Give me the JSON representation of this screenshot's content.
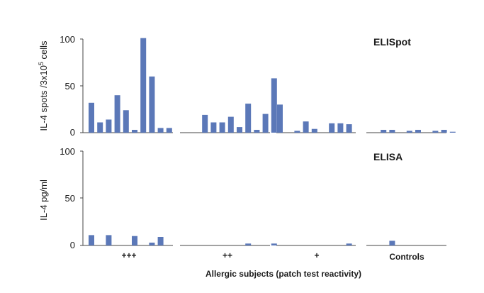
{
  "chart_data": {
    "type": "bar",
    "x_label": "Allergic subjects (patch test reactivity)",
    "groups": [
      "+++",
      "++",
      "+",
      "Controls"
    ],
    "bar_color": "#5b78b8",
    "panels": [
      {
        "title": "ELISpot",
        "y_label": "IL-4 spots /3x10",
        "y_label_sup": "5",
        "y_label_tail": " cells",
        "ylim": [
          0,
          100
        ],
        "yticks": [
          "0",
          "50",
          "100"
        ],
        "series": [
          [
            32,
            11,
            14,
            40,
            24,
            3,
            101,
            60,
            5,
            5
          ],
          [
            null,
            19,
            11,
            11,
            17,
            6,
            31,
            3,
            20,
            58
          ],
          [
            30,
            null,
            2,
            12,
            4,
            null,
            10,
            10,
            9,
            null
          ],
          [
            null,
            3,
            3,
            null,
            2,
            3,
            null,
            2,
            3,
            1
          ]
        ]
      },
      {
        "title": "ELISA",
        "y_label": "IL-4 pg/ml",
        "ylim": [
          0,
          100
        ],
        "yticks": [
          "0",
          "50",
          "100"
        ],
        "series": [
          [
            11,
            null,
            11,
            null,
            null,
            10,
            null,
            3,
            9,
            null
          ],
          [
            null,
            null,
            null,
            null,
            null,
            null,
            2,
            null,
            null,
            2
          ],
          [
            null,
            null,
            null,
            null,
            null,
            null,
            null,
            null,
            2,
            null
          ],
          [
            null,
            null,
            5,
            null,
            null,
            null,
            null,
            null,
            null,
            null
          ]
        ]
      }
    ]
  }
}
